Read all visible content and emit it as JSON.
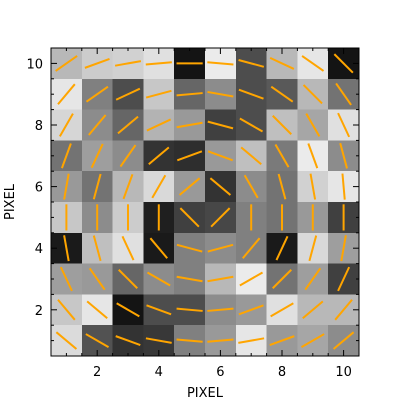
{
  "chart_data": {
    "type": "heatmap",
    "title": "",
    "xlabel": "PIXEL",
    "ylabel": "PIXEL",
    "xlim": [
      0.5,
      10.5
    ],
    "ylim": [
      0.5,
      10.5
    ],
    "x_ticks": [
      2,
      4,
      6,
      8,
      10
    ],
    "y_ticks": [
      2,
      4,
      6,
      8,
      10
    ],
    "colormap": "gray",
    "grid": false,
    "gray_grid_rows_top_to_bottom": [
      [
        0.72,
        0.8,
        0.82,
        0.88,
        0.08,
        0.92,
        0.3,
        0.72,
        0.9,
        0.08
      ],
      [
        0.9,
        0.5,
        0.3,
        0.78,
        0.4,
        0.55,
        0.3,
        0.35,
        0.72,
        0.45
      ],
      [
        0.84,
        0.55,
        0.4,
        0.7,
        0.6,
        0.25,
        0.3,
        0.75,
        0.65,
        0.88
      ],
      [
        0.45,
        0.62,
        0.55,
        0.2,
        0.18,
        0.6,
        0.75,
        0.48,
        0.92,
        0.55
      ],
      [
        0.6,
        0.45,
        0.72,
        0.85,
        0.6,
        0.2,
        0.55,
        0.45,
        0.82,
        0.9
      ],
      [
        0.78,
        0.55,
        0.8,
        0.12,
        0.25,
        0.28,
        0.5,
        0.45,
        0.6,
        0.25
      ],
      [
        0.1,
        0.75,
        0.88,
        0.1,
        0.5,
        0.55,
        0.5,
        0.1,
        0.85,
        0.62
      ],
      [
        0.62,
        0.6,
        0.4,
        0.55,
        0.5,
        0.72,
        0.92,
        0.45,
        0.62,
        0.25
      ],
      [
        0.78,
        0.9,
        0.08,
        0.3,
        0.3,
        0.55,
        0.6,
        0.88,
        0.72,
        0.72
      ],
      [
        0.86,
        0.32,
        0.2,
        0.22,
        0.5,
        0.6,
        0.9,
        0.6,
        0.65,
        0.55
      ]
    ],
    "vector_color": "#FFA500",
    "vector_segments": [
      {
        "x": 1,
        "y": 10,
        "angle": 35,
        "length": 0.85
      },
      {
        "x": 2,
        "y": 10,
        "angle": 20,
        "length": 0.85
      },
      {
        "x": 3,
        "y": 10,
        "angle": 10,
        "length": 0.85
      },
      {
        "x": 4,
        "y": 10,
        "angle": 5,
        "length": 0.85
      },
      {
        "x": 5,
        "y": 10,
        "angle": 0,
        "length": 0.85
      },
      {
        "x": 6,
        "y": 10,
        "angle": -5,
        "length": 0.85
      },
      {
        "x": 7,
        "y": 10,
        "angle": -15,
        "length": 0.85
      },
      {
        "x": 8,
        "y": 10,
        "angle": -25,
        "length": 0.85
      },
      {
        "x": 9,
        "y": 10,
        "angle": -35,
        "length": 0.85
      },
      {
        "x": 10,
        "y": 10,
        "angle": -45,
        "length": 0.85
      },
      {
        "x": 1,
        "y": 9,
        "angle": 50,
        "length": 0.85
      },
      {
        "x": 2,
        "y": 9,
        "angle": 35,
        "length": 0.85
      },
      {
        "x": 3,
        "y": 9,
        "angle": 25,
        "length": 0.85
      },
      {
        "x": 4,
        "y": 9,
        "angle": 15,
        "length": 0.85
      },
      {
        "x": 5,
        "y": 9,
        "angle": 5,
        "length": 0.85
      },
      {
        "x": 6,
        "y": 9,
        "angle": -10,
        "length": 0.85
      },
      {
        "x": 7,
        "y": 9,
        "angle": -20,
        "length": 0.85
      },
      {
        "x": 8,
        "y": 9,
        "angle": -35,
        "length": 0.85
      },
      {
        "x": 9,
        "y": 9,
        "angle": -45,
        "length": 0.85
      },
      {
        "x": 10,
        "y": 9,
        "angle": -55,
        "length": 0.85
      },
      {
        "x": 1,
        "y": 8,
        "angle": 60,
        "length": 0.85
      },
      {
        "x": 2,
        "y": 8,
        "angle": 50,
        "length": 0.85
      },
      {
        "x": 3,
        "y": 8,
        "angle": 40,
        "length": 0.85
      },
      {
        "x": 4,
        "y": 8,
        "angle": 25,
        "length": 0.85
      },
      {
        "x": 5,
        "y": 8,
        "angle": 10,
        "length": 0.85
      },
      {
        "x": 6,
        "y": 8,
        "angle": -15,
        "length": 0.85
      },
      {
        "x": 7,
        "y": 8,
        "angle": -30,
        "length": 0.85
      },
      {
        "x": 8,
        "y": 8,
        "angle": -45,
        "length": 0.85
      },
      {
        "x": 9,
        "y": 8,
        "angle": -60,
        "length": 0.85
      },
      {
        "x": 10,
        "y": 8,
        "angle": -65,
        "length": 0.85
      },
      {
        "x": 1,
        "y": 7,
        "angle": 70,
        "length": 0.85
      },
      {
        "x": 2,
        "y": 7,
        "angle": 65,
        "length": 0.85
      },
      {
        "x": 3,
        "y": 7,
        "angle": 55,
        "length": 0.85
      },
      {
        "x": 4,
        "y": 7,
        "angle": 40,
        "length": 0.85
      },
      {
        "x": 5,
        "y": 7,
        "angle": 20,
        "length": 0.85
      },
      {
        "x": 6,
        "y": 7,
        "angle": -20,
        "length": 0.85
      },
      {
        "x": 7,
        "y": 7,
        "angle": -40,
        "length": 0.85
      },
      {
        "x": 8,
        "y": 7,
        "angle": -60,
        "length": 0.85
      },
      {
        "x": 9,
        "y": 7,
        "angle": -70,
        "length": 0.85
      },
      {
        "x": 10,
        "y": 7,
        "angle": -75,
        "length": 0.85
      },
      {
        "x": 1,
        "y": 6,
        "angle": 80,
        "length": 0.85
      },
      {
        "x": 2,
        "y": 6,
        "angle": 75,
        "length": 0.85
      },
      {
        "x": 3,
        "y": 6,
        "angle": 70,
        "length": 0.85
      },
      {
        "x": 4,
        "y": 6,
        "angle": 60,
        "length": 0.85
      },
      {
        "x": 5,
        "y": 6,
        "angle": 40,
        "length": 0.85
      },
      {
        "x": 6,
        "y": 6,
        "angle": -40,
        "length": 0.85
      },
      {
        "x": 7,
        "y": 6,
        "angle": -60,
        "length": 0.85
      },
      {
        "x": 8,
        "y": 6,
        "angle": -75,
        "length": 0.85
      },
      {
        "x": 9,
        "y": 6,
        "angle": -80,
        "length": 0.85
      },
      {
        "x": 10,
        "y": 6,
        "angle": -85,
        "length": 0.85
      },
      {
        "x": 1,
        "y": 5,
        "angle": 90,
        "length": 0.85
      },
      {
        "x": 2,
        "y": 5,
        "angle": 90,
        "length": 0.85
      },
      {
        "x": 3,
        "y": 5,
        "angle": 90,
        "length": 0.85
      },
      {
        "x": 4,
        "y": 5,
        "angle": 90,
        "length": 0.85
      },
      {
        "x": 5,
        "y": 5,
        "angle": -45,
        "length": 0.85
      },
      {
        "x": 6,
        "y": 5,
        "angle": 45,
        "length": 0.85
      },
      {
        "x": 7,
        "y": 5,
        "angle": 90,
        "length": 0.85
      },
      {
        "x": 8,
        "y": 5,
        "angle": 90,
        "length": 0.85
      },
      {
        "x": 9,
        "y": 5,
        "angle": 90,
        "length": 0.85
      },
      {
        "x": 10,
        "y": 5,
        "angle": 90,
        "length": 0.85
      },
      {
        "x": 1,
        "y": 4,
        "angle": -80,
        "length": 0.85
      },
      {
        "x": 2,
        "y": 4,
        "angle": -75,
        "length": 0.85
      },
      {
        "x": 3,
        "y": 4,
        "angle": -65,
        "length": 0.85
      },
      {
        "x": 4,
        "y": 4,
        "angle": -50,
        "length": 0.85
      },
      {
        "x": 5,
        "y": 4,
        "angle": -15,
        "length": 0.85
      },
      {
        "x": 6,
        "y": 4,
        "angle": 15,
        "length": 0.85
      },
      {
        "x": 7,
        "y": 4,
        "angle": 50,
        "length": 0.85
      },
      {
        "x": 8,
        "y": 4,
        "angle": 65,
        "length": 0.85
      },
      {
        "x": 9,
        "y": 4,
        "angle": 75,
        "length": 0.85
      },
      {
        "x": 10,
        "y": 4,
        "angle": 80,
        "length": 0.85
      },
      {
        "x": 1,
        "y": 3,
        "angle": -65,
        "length": 0.85
      },
      {
        "x": 2,
        "y": 3,
        "angle": -55,
        "length": 0.85
      },
      {
        "x": 3,
        "y": 3,
        "angle": -45,
        "length": 0.85
      },
      {
        "x": 4,
        "y": 3,
        "angle": -30,
        "length": 0.85
      },
      {
        "x": 5,
        "y": 3,
        "angle": -10,
        "length": 0.85
      },
      {
        "x": 6,
        "y": 3,
        "angle": 10,
        "length": 0.85
      },
      {
        "x": 7,
        "y": 3,
        "angle": 30,
        "length": 0.85
      },
      {
        "x": 8,
        "y": 3,
        "angle": 45,
        "length": 0.85
      },
      {
        "x": 9,
        "y": 3,
        "angle": 55,
        "length": 0.85
      },
      {
        "x": 10,
        "y": 3,
        "angle": 65,
        "length": 0.85
      },
      {
        "x": 1,
        "y": 2,
        "angle": -50,
        "length": 0.85
      },
      {
        "x": 2,
        "y": 2,
        "angle": -40,
        "length": 0.85
      },
      {
        "x": 3,
        "y": 2,
        "angle": -30,
        "length": 0.85
      },
      {
        "x": 4,
        "y": 2,
        "angle": -20,
        "length": 0.85
      },
      {
        "x": 5,
        "y": 2,
        "angle": -5,
        "length": 0.85
      },
      {
        "x": 6,
        "y": 2,
        "angle": 5,
        "length": 0.85
      },
      {
        "x": 7,
        "y": 2,
        "angle": 20,
        "length": 0.85
      },
      {
        "x": 8,
        "y": 2,
        "angle": 30,
        "length": 0.85
      },
      {
        "x": 9,
        "y": 2,
        "angle": 40,
        "length": 0.85
      },
      {
        "x": 10,
        "y": 2,
        "angle": 50,
        "length": 0.85
      },
      {
        "x": 1,
        "y": 1,
        "angle": -40,
        "length": 0.85
      },
      {
        "x": 2,
        "y": 1,
        "angle": -30,
        "length": 0.85
      },
      {
        "x": 3,
        "y": 1,
        "angle": -20,
        "length": 0.85
      },
      {
        "x": 4,
        "y": 1,
        "angle": -10,
        "length": 0.85
      },
      {
        "x": 5,
        "y": 1,
        "angle": -5,
        "length": 0.85
      },
      {
        "x": 6,
        "y": 1,
        "angle": 5,
        "length": 0.85
      },
      {
        "x": 7,
        "y": 1,
        "angle": 10,
        "length": 0.85
      },
      {
        "x": 8,
        "y": 1,
        "angle": 20,
        "length": 0.85
      },
      {
        "x": 9,
        "y": 1,
        "angle": 30,
        "length": 0.85
      },
      {
        "x": 10,
        "y": 1,
        "angle": 40,
        "length": 0.85
      }
    ]
  }
}
